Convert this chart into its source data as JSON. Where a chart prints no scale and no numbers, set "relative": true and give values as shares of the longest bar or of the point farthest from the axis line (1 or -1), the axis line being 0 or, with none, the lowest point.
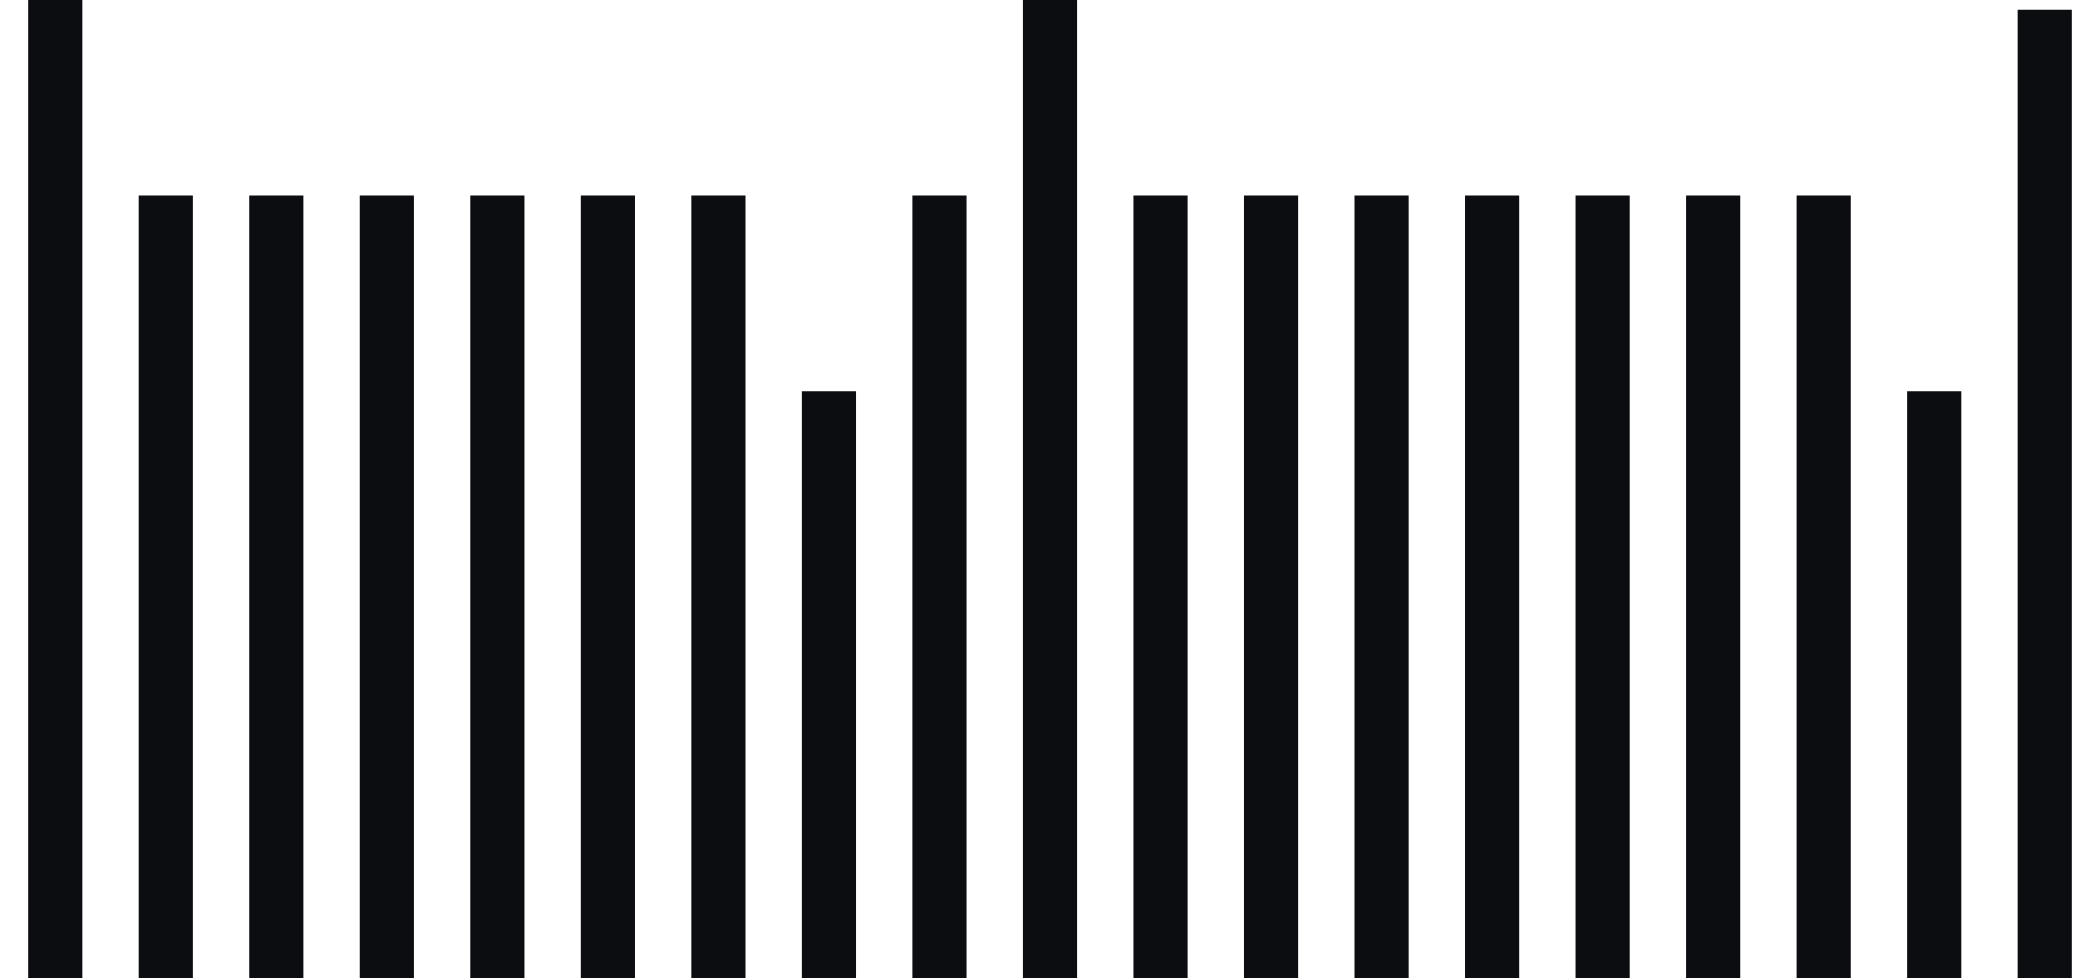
{
  "chart_data": {
    "type": "bar",
    "relative": true,
    "color": "#0b0d11",
    "categories": [
      null,
      null,
      null,
      null,
      null,
      null,
      null,
      null,
      null,
      null,
      null,
      null,
      null,
      null,
      null,
      null,
      null,
      null,
      null
    ],
    "values": [
      1,
      0.8,
      0.8,
      0.8,
      0.8,
      0.8,
      0.8,
      0.6,
      0.8,
      1,
      0.8,
      0.8,
      0.8,
      0.8,
      0.8,
      0.8,
      0.8,
      0.6,
      0.99
    ]
  }
}
